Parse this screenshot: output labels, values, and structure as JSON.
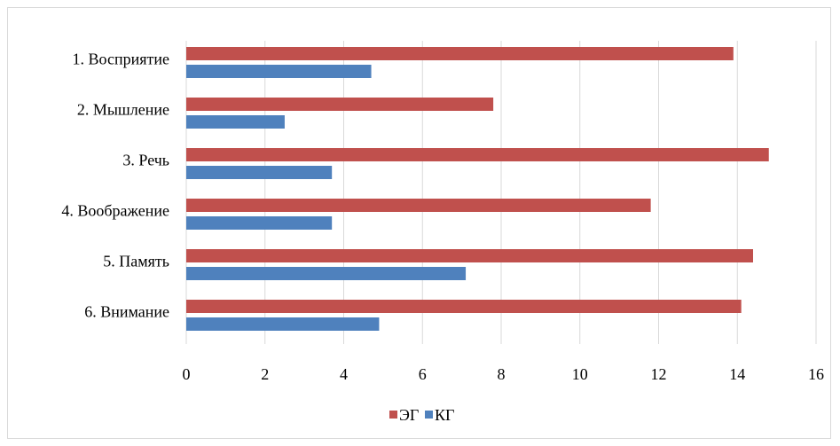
{
  "chart_data": {
    "type": "bar",
    "orientation": "horizontal",
    "categories": [
      "1. Восприятие",
      "2. Мышление",
      "3. Речь",
      "4. Воображение",
      "5. Память",
      "6. Внимание"
    ],
    "series": [
      {
        "name": "ЭГ",
        "color": "#c0504d",
        "values": [
          13.9,
          7.8,
          14.8,
          11.8,
          14.4,
          14.1
        ]
      },
      {
        "name": "КГ",
        "color": "#4f81bd",
        "values": [
          4.7,
          2.5,
          3.7,
          3.7,
          7.1,
          4.9
        ]
      }
    ],
    "xlim": [
      0,
      16
    ],
    "xticks": [
      0,
      2,
      4,
      6,
      8,
      10,
      12,
      14,
      16
    ],
    "tick_labels": [
      "0",
      "2",
      "4",
      "6",
      "8",
      "10",
      "12",
      "14",
      "16"
    ],
    "grid": "vertical",
    "legend_position": "bottom",
    "title": "",
    "xlabel": "",
    "ylabel": ""
  }
}
